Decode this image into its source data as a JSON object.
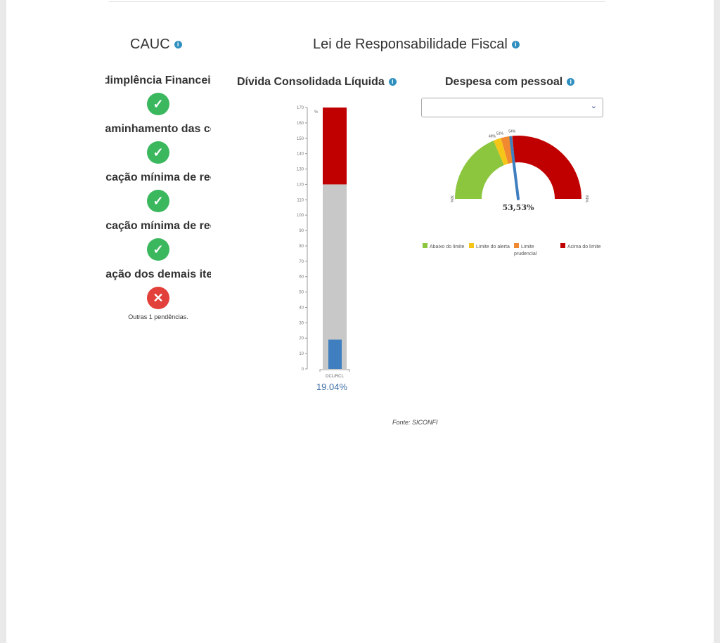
{
  "cauc": {
    "title": "CAUC",
    "items": [
      {
        "label": "Adimplência Financeira",
        "status": "ok"
      },
      {
        "label": "Encaminhamento das contas anuais",
        "status": "ok"
      },
      {
        "label": "Aplicação mínima de recursos em saúde",
        "status": "ok"
      },
      {
        "label": "Aplicação mínima de recursos em educação",
        "status": "ok"
      },
      {
        "label": "Situação dos demais itens no CAUC",
        "status": "error",
        "note": "Outras 1 pendências."
      }
    ]
  },
  "lrf": {
    "title": "Lei de Responsabilidade Fiscal"
  },
  "chart_data": [
    {
      "type": "bar",
      "title": "Dívida Consolidada Líquida",
      "ylabel": "%",
      "ylim": [
        0,
        170
      ],
      "yticks": [
        0,
        10,
        20,
        30,
        40,
        50,
        60,
        70,
        80,
        90,
        100,
        110,
        120,
        130,
        140,
        150,
        160,
        170
      ],
      "categories": [
        "DCL/RCL"
      ],
      "value": 19.04,
      "value_label": "19.04%",
      "bands": [
        {
          "from": 0,
          "to": 120,
          "color": "#c8c8c8"
        },
        {
          "from": 120,
          "to": 170,
          "color": "#c00000"
        }
      ],
      "bar_color": "#3f7fbf"
    },
    {
      "type": "gauge",
      "title": "Despesa com pessoal",
      "min_label": "30%",
      "max_label": "81%",
      "min": 30,
      "max": 81,
      "value": 53.53,
      "value_label": "53,53%",
      "thresholds": [
        {
          "value": 49,
          "label": "49%"
        },
        {
          "value": 51,
          "label": "51%"
        },
        {
          "value": 54,
          "label": "54%"
        }
      ],
      "segments": [
        {
          "from": 30,
          "to": 49,
          "color": "#8cc63f"
        },
        {
          "from": 49,
          "to": 51,
          "color": "#f5c518"
        },
        {
          "from": 51,
          "to": 54,
          "color": "#f0892f"
        },
        {
          "from": 54,
          "to": 81,
          "color": "#c00000"
        }
      ],
      "legend": [
        {
          "label": "Abaixo do limite",
          "color": "#8cc63f"
        },
        {
          "label": "Limite do alerta",
          "color": "#f5c518"
        },
        {
          "label": "Limite prudencial",
          "color": "#f0892f"
        },
        {
          "label": "Acima do limite",
          "color": "#c00000"
        }
      ]
    }
  ],
  "dropdown": {
    "value": ""
  },
  "source": "Fonte: SICONFI"
}
